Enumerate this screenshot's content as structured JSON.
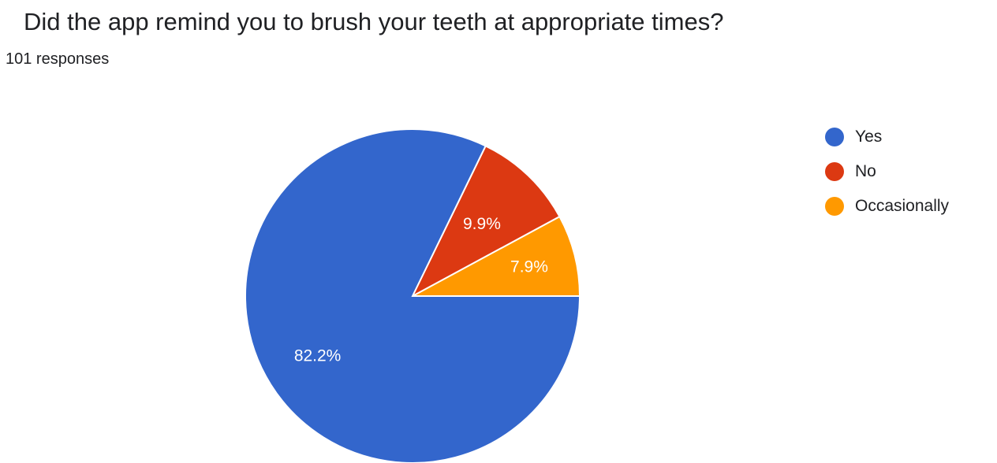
{
  "header": {
    "question": "Did the app remind you to brush your teeth at appropriate times?",
    "responses": "101 responses"
  },
  "colors": {
    "yes": "#3366cc",
    "no": "#dc3912",
    "occasionally": "#ff9900",
    "slice_border": "#ffffff",
    "label_text": "#ffffff"
  },
  "chart_data": {
    "type": "pie",
    "title": "Did the app remind you to brush your teeth at appropriate times?",
    "total_responses": 101,
    "legend_position": "right",
    "slices": [
      {
        "label": "Yes",
        "value": 82.2,
        "display": "82.2%",
        "color": "#3366cc"
      },
      {
        "label": "No",
        "value": 9.9,
        "display": "9.9%",
        "color": "#dc3912"
      },
      {
        "label": "Occasionally",
        "value": 7.9,
        "display": "7.9%",
        "color": "#ff9900"
      }
    ]
  }
}
